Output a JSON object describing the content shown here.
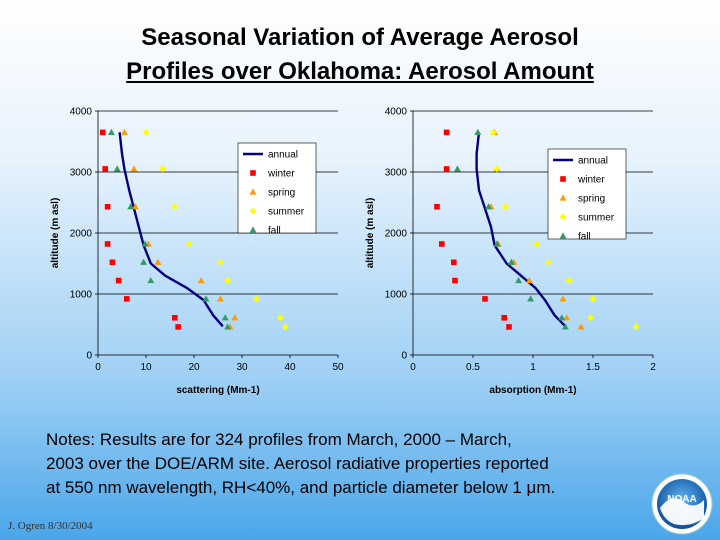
{
  "title_line1": "Seasonal Variation of Average Aerosol",
  "title_line2": "Profiles over Oklahoma: Aerosol Amount",
  "notes": {
    "line1": "Notes:  Results are for 324 profiles from March, 2000 – March,",
    "line2": "2003 over the DOE/ARM site.  Aerosol radiative properties reported",
    "line3": "at 550 nm wavelength, RH<40%, and particle diameter below 1 μm."
  },
  "credit": "J. Ogren  8/30/2004",
  "logo_text": "NOAA",
  "colors": {
    "annual": "#000080",
    "winter": "#ff0000",
    "spring": "#ff9900",
    "summer": "#ffff00",
    "fall": "#339966"
  },
  "chart_data": [
    {
      "type": "scatter",
      "xlabel": "scattering (Mm-1)",
      "ylabel": "altitude (m asl)",
      "xlim": [
        0,
        50
      ],
      "ylim": [
        0,
        4000
      ],
      "xticks": [
        0,
        10,
        20,
        30,
        40,
        50
      ],
      "yticks": [
        0,
        1000,
        2000,
        3000,
        4000
      ],
      "grid": "horizontal",
      "legend": "top-right",
      "series": [
        {
          "name": "annual",
          "kind": "line",
          "color": "#000080",
          "points": [
            [
              4.5,
              3650
            ],
            [
              5,
              3300
            ],
            [
              5.5,
              3050
            ],
            [
              6.5,
              2700
            ],
            [
              7.5,
              2400
            ],
            [
              8.5,
              2100
            ],
            [
              9.5,
              1800
            ],
            [
              11,
              1500
            ],
            [
              14,
              1300
            ],
            [
              18.5,
              1100
            ],
            [
              22,
              900
            ],
            [
              24,
              650
            ],
            [
              26,
              470
            ]
          ]
        },
        {
          "name": "winter",
          "kind": "square",
          "color": "#ff0000",
          "points": [
            [
              1,
              3650
            ],
            [
              1.5,
              3050
            ],
            [
              2,
              2430
            ],
            [
              2,
              1820
            ],
            [
              3,
              1520
            ],
            [
              4.3,
              1220
            ],
            [
              6,
              920
            ],
            [
              16,
              610
            ],
            [
              16.7,
              460
            ]
          ]
        },
        {
          "name": "spring",
          "kind": "triangle",
          "color": "#ff9900",
          "points": [
            [
              5.5,
              3650
            ],
            [
              7.5,
              3050
            ],
            [
              7.8,
              2430
            ],
            [
              10.5,
              1820
            ],
            [
              12.5,
              1520
            ],
            [
              21.5,
              1220
            ],
            [
              25.5,
              920
            ],
            [
              28.5,
              610
            ],
            [
              27.5,
              460
            ]
          ]
        },
        {
          "name": "summer",
          "kind": "diamond",
          "color": "#ffff00",
          "points": [
            [
              10,
              3650
            ],
            [
              13.5,
              3050
            ],
            [
              16,
              2430
            ],
            [
              19,
              1820
            ],
            [
              25.5,
              1520
            ],
            [
              27,
              1220
            ],
            [
              33,
              920
            ],
            [
              38,
              610
            ],
            [
              39,
              460
            ]
          ]
        },
        {
          "name": "fall",
          "kind": "triangle",
          "color": "#339966",
          "points": [
            [
              2.8,
              3650
            ],
            [
              4,
              3050
            ],
            [
              6.8,
              2430
            ],
            [
              9.8,
              1820
            ],
            [
              9.5,
              1520
            ],
            [
              11,
              1220
            ],
            [
              22.5,
              920
            ],
            [
              26.5,
              610
            ],
            [
              27,
              460
            ]
          ]
        }
      ]
    },
    {
      "type": "scatter",
      "xlabel": "absorption (Mm-1)",
      "ylabel": "altitude (m asl)",
      "xlim": [
        0,
        2
      ],
      "ylim": [
        0,
        4000
      ],
      "xticks": [
        0,
        0.5,
        1,
        1.5,
        2
      ],
      "yticks": [
        0,
        1000,
        2000,
        3000,
        4000
      ],
      "grid": "horizontal",
      "legend": "top-right",
      "series": [
        {
          "name": "annual",
          "kind": "line",
          "color": "#000080",
          "points": [
            [
              0.55,
              3650
            ],
            [
              0.53,
              3300
            ],
            [
              0.53,
              3050
            ],
            [
              0.55,
              2700
            ],
            [
              0.6,
              2400
            ],
            [
              0.65,
              2100
            ],
            [
              0.68,
              1800
            ],
            [
              0.78,
              1500
            ],
            [
              0.9,
              1300
            ],
            [
              1.02,
              1100
            ],
            [
              1.1,
              900
            ],
            [
              1.18,
              650
            ],
            [
              1.27,
              470
            ]
          ]
        },
        {
          "name": "winter",
          "kind": "square",
          "color": "#ff0000",
          "points": [
            [
              0.28,
              3650
            ],
            [
              0.28,
              3050
            ],
            [
              0.2,
              2430
            ],
            [
              0.24,
              1820
            ],
            [
              0.34,
              1520
            ],
            [
              0.35,
              1220
            ],
            [
              0.6,
              920
            ],
            [
              0.76,
              610
            ],
            [
              0.8,
              460
            ]
          ]
        },
        {
          "name": "spring",
          "kind": "triangle",
          "color": "#ff9900",
          "points": [
            [
              0.68,
              3650
            ],
            [
              0.7,
              3050
            ],
            [
              0.65,
              2430
            ],
            [
              0.71,
              1820
            ],
            [
              0.84,
              1520
            ],
            [
              0.97,
              1220
            ],
            [
              1.25,
              920
            ],
            [
              1.28,
              610
            ],
            [
              1.4,
              460
            ]
          ]
        },
        {
          "name": "summer",
          "kind": "diamond",
          "color": "#ffff00",
          "points": [
            [
              0.67,
              3650
            ],
            [
              0.7,
              3050
            ],
            [
              0.77,
              2430
            ],
            [
              1.03,
              1820
            ],
            [
              1.13,
              1520
            ],
            [
              1.3,
              1220
            ],
            [
              1.5,
              920
            ],
            [
              1.48,
              610
            ],
            [
              1.86,
              460
            ]
          ]
        },
        {
          "name": "fall",
          "kind": "triangle",
          "color": "#339966",
          "points": [
            [
              0.54,
              3650
            ],
            [
              0.37,
              3050
            ],
            [
              0.63,
              2430
            ],
            [
              0.7,
              1820
            ],
            [
              0.82,
              1520
            ],
            [
              0.88,
              1220
            ],
            [
              0.98,
              920
            ],
            [
              1.24,
              610
            ],
            [
              1.27,
              460
            ]
          ]
        }
      ]
    }
  ]
}
